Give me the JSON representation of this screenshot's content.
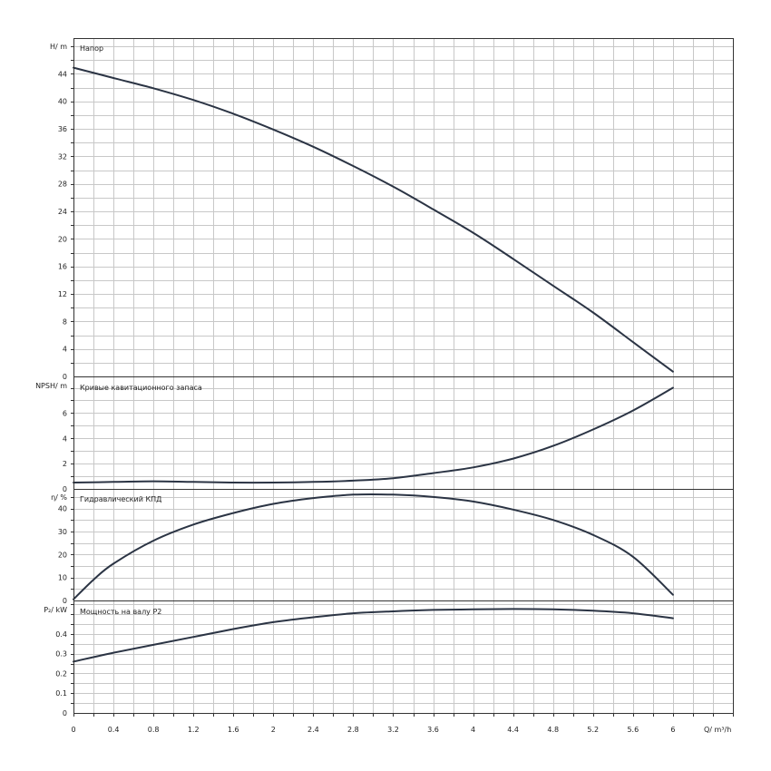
{
  "chart_data": [
    {
      "type": "line",
      "panel": "head",
      "title": "Напор",
      "ylabel": "H/ m",
      "xlabel": "Q/ m³/h",
      "xlim": [
        0,
        6.6
      ],
      "ylim": [
        0,
        49.2
      ],
      "yticks": [
        0,
        4,
        8,
        12,
        16,
        20,
        24,
        28,
        32,
        36,
        40,
        44
      ],
      "grid": true,
      "series": [
        {
          "x": [
            0,
            0.4,
            0.8,
            1.2,
            1.6,
            2.0,
            2.4,
            2.8,
            3.2,
            3.6,
            4.0,
            4.4,
            4.8,
            5.2,
            5.6,
            6.0
          ],
          "values": [
            44.9,
            43.4,
            41.9,
            40.2,
            38.2,
            35.9,
            33.4,
            30.6,
            27.6,
            24.3,
            20.9,
            17.1,
            13.2,
            9.3,
            5.0,
            0.7
          ]
        }
      ]
    },
    {
      "type": "line",
      "panel": "npsh",
      "title": "Кривые кавитационного запаса",
      "ylabel": "NPSH/ m",
      "xlim": [
        0,
        6.6
      ],
      "ylim": [
        0,
        8.9
      ],
      "yticks": [
        0,
        2,
        4,
        6
      ],
      "grid": true,
      "series": [
        {
          "x": [
            0,
            0.4,
            0.8,
            1.2,
            1.6,
            2.0,
            2.4,
            2.8,
            3.2,
            3.6,
            4.0,
            4.4,
            4.8,
            5.2,
            5.6,
            6.0
          ],
          "values": [
            0.5,
            0.55,
            0.6,
            0.55,
            0.5,
            0.5,
            0.55,
            0.65,
            0.85,
            1.25,
            1.7,
            2.4,
            3.4,
            4.7,
            6.2,
            8.0
          ]
        }
      ]
    },
    {
      "type": "line",
      "panel": "efficiency",
      "title": "Гидравлический КПД",
      "ylabel": "η/ %",
      "xlim": [
        0,
        6.6
      ],
      "ylim": [
        0,
        48.5
      ],
      "yticks": [
        0,
        10,
        20,
        30,
        40
      ],
      "grid": true,
      "series": [
        {
          "x": [
            0,
            0.2,
            0.4,
            0.8,
            1.2,
            1.6,
            2.0,
            2.4,
            2.8,
            3.2,
            3.6,
            4.0,
            4.4,
            4.8,
            5.2,
            5.6,
            6.0
          ],
          "values": [
            0.5,
            9.0,
            16.0,
            26.0,
            33.0,
            38.0,
            42.0,
            44.5,
            46.0,
            46.0,
            45.0,
            43.0,
            39.5,
            35.0,
            28.5,
            19.0,
            2.5
          ]
        }
      ]
    },
    {
      "type": "line",
      "panel": "power",
      "title": "Мощность на валу P2",
      "ylabel": "P₂/ kW",
      "xlim": [
        0,
        6.6
      ],
      "ylim": [
        0,
        0.57
      ],
      "yticks": [
        0,
        0.1,
        0.2,
        0.3,
        0.4
      ],
      "ytick_labels": [
        "0",
        "0.1",
        "0.2",
        "0.3",
        "0.4"
      ],
      "grid": true,
      "series": [
        {
          "x": [
            0,
            0.4,
            0.8,
            1.2,
            1.6,
            2.0,
            2.4,
            2.8,
            3.2,
            3.6,
            4.0,
            4.4,
            4.8,
            5.2,
            5.6,
            6.0
          ],
          "values": [
            0.26,
            0.305,
            0.345,
            0.385,
            0.425,
            0.46,
            0.485,
            0.505,
            0.515,
            0.522,
            0.525,
            0.527,
            0.525,
            0.518,
            0.505,
            0.48
          ]
        }
      ]
    }
  ],
  "x_axis": {
    "ticks": [
      0,
      0.4,
      0.8,
      1.2,
      1.6,
      2.0,
      2.4,
      2.8,
      3.2,
      3.6,
      4.0,
      4.4,
      4.8,
      5.2,
      5.6,
      6.0
    ],
    "tick_labels": [
      "0",
      "0.4",
      "0.8",
      "1.2",
      "1.6",
      "2",
      "2.4",
      "2.8",
      "3.2",
      "3.6",
      "4",
      "4.4",
      "4.8",
      "5.2",
      "5.6",
      "6"
    ],
    "label": "Q/ m³/h"
  },
  "colors": {
    "curve": "#2b3444",
    "grid": "#c8c8c8",
    "frame": "#333333"
  }
}
